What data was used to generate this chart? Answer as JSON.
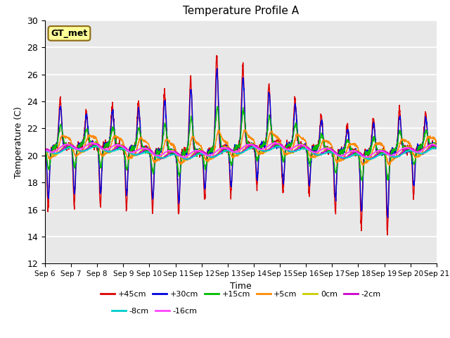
{
  "title": "Temperature Profile A",
  "xlabel": "Time",
  "ylabel": "Temperature (C)",
  "ylim": [
    12,
    30
  ],
  "plot_bg_color": "#e8e8e8",
  "fig_bg_color": "#ffffff",
  "annotation_text": "GT_met",
  "annotation_bg": "#ffff99",
  "annotation_border": "#8B6914",
  "series": [
    {
      "label": "+45cm",
      "color": "#dd0000",
      "lw": 1.0
    },
    {
      "label": "+30cm",
      "color": "#0000dd",
      "lw": 1.0
    },
    {
      "label": "+15cm",
      "color": "#00bb00",
      "lw": 1.0
    },
    {
      "label": "+5cm",
      "color": "#ff8800",
      "lw": 1.0
    },
    {
      "label": "0cm",
      "color": "#cccc00",
      "lw": 1.0
    },
    {
      "label": "-2cm",
      "color": "#cc00cc",
      "lw": 1.0
    },
    {
      "label": "-8cm",
      "color": "#00cccc",
      "lw": 1.0
    },
    {
      "label": "-16cm",
      "color": "#ff44ff",
      "lw": 1.0
    }
  ],
  "xtick_labels": [
    "Sep 6",
    "Sep 7",
    "Sep 8",
    "Sep 9",
    "Sep 10",
    "Sep 11",
    "Sep 12",
    "Sep 13",
    "Sep 14",
    "Sep 15",
    "Sep 16",
    "Sep 17",
    "Sep 18",
    "Sep 19",
    "Sep 20",
    "Sep 21"
  ],
  "ytick_vals": [
    12,
    14,
    16,
    18,
    20,
    22,
    24,
    26,
    28,
    30
  ],
  "n_days": 15,
  "pts_per_day": 144
}
